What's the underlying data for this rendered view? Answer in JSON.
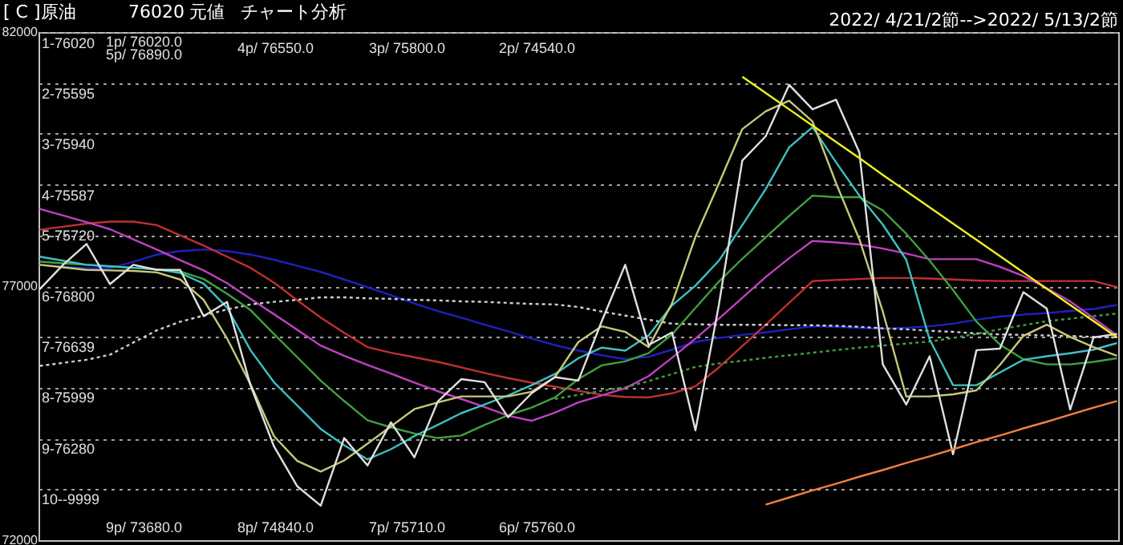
{
  "chart_data": {
    "type": "line",
    "annotations": [
      "[ C ]原油",
      "76020",
      "元値",
      "チャート分析",
      "2022/ 4/21/2節-->2022/ 5/13/2節",
      "1-76020",
      "2-75595",
      "3-75940",
      "4-75587",
      "5-75720",
      "6-76800",
      "7-76639",
      "8-75999",
      "9-76280",
      "10--9999",
      "1p/ 76020.0",
      "5p/ 76890.0",
      "4p/ 76550.0",
      "3p/ 75800.0",
      "2p/ 74540.0",
      "9p/ 73680.0",
      "8p/ 74840.0",
      "7p/ 75710.0",
      "6p/ 75760.0"
    ],
    "categories": [
      null,
      null,
      null,
      null,
      null,
      null,
      null,
      null,
      null,
      null,
      null,
      null,
      null,
      null,
      null,
      null,
      null,
      null,
      null,
      null,
      null,
      null,
      null,
      null,
      null,
      null,
      null,
      null,
      null,
      null,
      null,
      null,
      null,
      null,
      null,
      null,
      null,
      null,
      null,
      null,
      null,
      null,
      null,
      null,
      null,
      null,
      null
    ],
    "ylim": [
      72000,
      82000
    ],
    "yticks": [
      82000,
      {
        "value": 81000,
        "label": null
      },
      {
        "value": 80000,
        "label": null
      },
      {
        "value": 79000,
        "label": null
      },
      {
        "value": 78000,
        "label": null
      },
      77000,
      {
        "value": 76000,
        "label": null
      },
      {
        "value": 75000,
        "label": null
      },
      {
        "value": 74000,
        "label": null
      },
      {
        "value": 73000,
        "label": null
      },
      72000
    ],
    "tick_labels": "y",
    "grid": "y",
    "series": [
      {
        "color": "#2020c0",
        "values": [
          77420,
          77380,
          77350,
          77350,
          77480,
          77620,
          77690,
          77720,
          77690,
          77620,
          77520,
          77400,
          77280,
          77130,
          76980,
          76820,
          76660,
          76510,
          76380,
          76240,
          76110,
          75970,
          75840,
          75730,
          75640,
          75560,
          75610,
          75750,
          75900,
          75980,
          76040,
          76090,
          76150,
          76210,
          76200,
          76180,
          76160,
          76180,
          76210,
          76260,
          76340,
          76400,
          76440,
          76470,
          76510,
          76550,
          76630
        ]
      },
      {
        "color": "#c03030",
        "values": [
          78110,
          78170,
          78230,
          78270,
          78270,
          78200,
          78000,
          77800,
          77580,
          77360,
          77070,
          76720,
          76380,
          76080,
          75800,
          75690,
          75600,
          75510,
          75400,
          75290,
          75190,
          75100,
          75020,
          74940,
          74860,
          74820,
          74810,
          74890,
          75030,
          75400,
          75820,
          76240,
          76670,
          77100,
          77120,
          77140,
          77160,
          77160,
          77150,
          77130,
          77110,
          77100,
          77100,
          77100,
          77100,
          77100,
          76980
        ]
      },
      {
        "color": "#c040c0",
        "values": [
          78520,
          78390,
          78260,
          78120,
          77920,
          77720,
          77510,
          77310,
          77060,
          76750,
          76450,
          76140,
          75830,
          75630,
          75450,
          75280,
          75100,
          74930,
          74780,
          74620,
          74450,
          74350,
          74510,
          74710,
          74850,
          74990,
          75230,
          75590,
          75970,
          76360,
          76770,
          77180,
          77550,
          77890,
          77860,
          77820,
          77740,
          77640,
          77530,
          77530,
          77530,
          77380,
          77200,
          76960,
          76700,
          76370,
          76030
        ]
      },
      {
        "color": "#d0d0d0",
        "line_style": "dotted",
        "values": [
          75430,
          75490,
          75550,
          75650,
          75890,
          76130,
          76300,
          76420,
          76540,
          76640,
          76690,
          76730,
          76780,
          76780,
          76760,
          76750,
          76730,
          76720,
          76700,
          76690,
          76670,
          76650,
          76640,
          76590,
          76500,
          76420,
          76340,
          76260,
          76250,
          76240,
          76240,
          76240,
          76230,
          76230,
          76220,
          76200,
          76170,
          76150,
          76120,
          76100,
          76070,
          76050,
          76040,
          76030,
          76020,
          76000,
          75990
        ]
      },
      {
        "color": "#40a040",
        "line_style": "dotted",
        "values": [
          null,
          null,
          null,
          null,
          null,
          null,
          null,
          null,
          null,
          null,
          null,
          null,
          null,
          null,
          null,
          null,
          null,
          null,
          null,
          null,
          null,
          null,
          74780,
          74860,
          74940,
          75010,
          75130,
          75270,
          75410,
          75480,
          75530,
          75590,
          75640,
          75690,
          75740,
          75790,
          75830,
          75870,
          75910,
          75980,
          76060,
          76150,
          76230,
          76310,
          76360,
          76410,
          76460
        ]
      },
      {
        "color": "#40a040",
        "values": [
          77480,
          77450,
          77420,
          77390,
          77360,
          77330,
          77290,
          77140,
          76850,
          76530,
          76060,
          75600,
          75140,
          74740,
          74360,
          74220,
          74100,
          74010,
          74060,
          74270,
          74460,
          74610,
          74810,
          75170,
          75440,
          75520,
          75680,
          76050,
          76570,
          77090,
          77540,
          77960,
          78380,
          78780,
          78750,
          78750,
          78490,
          78030,
          77500,
          76920,
          76300,
          75850,
          75560,
          75460,
          75460,
          75510,
          75580
        ]
      },
      {
        "color": "#40c0c0",
        "values": [
          77580,
          77500,
          77420,
          77390,
          77360,
          77330,
          77260,
          77050,
          76580,
          75740,
          75110,
          74650,
          74190,
          73870,
          73590,
          73790,
          74050,
          74270,
          74500,
          74670,
          74850,
          75050,
          75270,
          75580,
          75790,
          75730,
          76030,
          76620,
          77010,
          77500,
          78200,
          78910,
          79730,
          80130,
          79440,
          78780,
          78210,
          77520,
          75950,
          75050,
          75050,
          75300,
          75550,
          75620,
          75680,
          75750,
          75880
        ]
      },
      {
        "color": "#c8c878",
        "values": [
          77420,
          77370,
          77320,
          77310,
          77300,
          77270,
          77130,
          76730,
          75970,
          75070,
          74050,
          73560,
          73350,
          73570,
          73900,
          74240,
          74580,
          74710,
          74830,
          74830,
          74830,
          74920,
          75210,
          75900,
          76210,
          76100,
          75800,
          76660,
          77970,
          79020,
          80090,
          80440,
          80650,
          80240,
          79030,
          77920,
          76500,
          74830,
          74830,
          74870,
          74950,
          75450,
          76020,
          76240,
          76000,
          75800,
          75630
        ]
      },
      {
        "color": "#e0e0e0",
        "values": [
          76940,
          77420,
          77830,
          77040,
          77420,
          77320,
          77320,
          76410,
          76690,
          75050,
          73850,
          73060,
          72680,
          74010,
          73470,
          74320,
          73630,
          74730,
          75170,
          75110,
          74420,
          74890,
          75210,
          75140,
          76310,
          77420,
          75840,
          76090,
          74160,
          76630,
          79470,
          79950,
          80960,
          80480,
          80670,
          79630,
          75460,
          74670,
          75620,
          73690,
          75740,
          75770,
          76880,
          76560,
          74570,
          75990,
          76060
        ]
      },
      {
        "color": "#f0f020",
        "values": [
          null,
          null,
          null,
          null,
          null,
          null,
          null,
          null,
          null,
          null,
          null,
          null,
          null,
          null,
          null,
          null,
          null,
          null,
          null,
          null,
          null,
          null,
          null,
          null,
          null,
          null,
          null,
          null,
          null,
          null,
          81120,
          80800,
          80480,
          80160,
          79840,
          79520,
          79190,
          78870,
          78550,
          78230,
          77910,
          77590,
          77270,
          76950,
          76630,
          76310,
          75990
        ]
      },
      {
        "color": "#f08040",
        "values": [
          null,
          null,
          null,
          null,
          null,
          null,
          null,
          null,
          null,
          null,
          null,
          null,
          null,
          null,
          null,
          null,
          null,
          null,
          null,
          null,
          null,
          null,
          null,
          null,
          null,
          null,
          null,
          null,
          null,
          null,
          null,
          72700,
          72840,
          72980,
          73110,
          73250,
          73380,
          73520,
          73650,
          73790,
          73930,
          74060,
          74200,
          74330,
          74470,
          74610,
          74740
        ]
      }
    ]
  }
}
